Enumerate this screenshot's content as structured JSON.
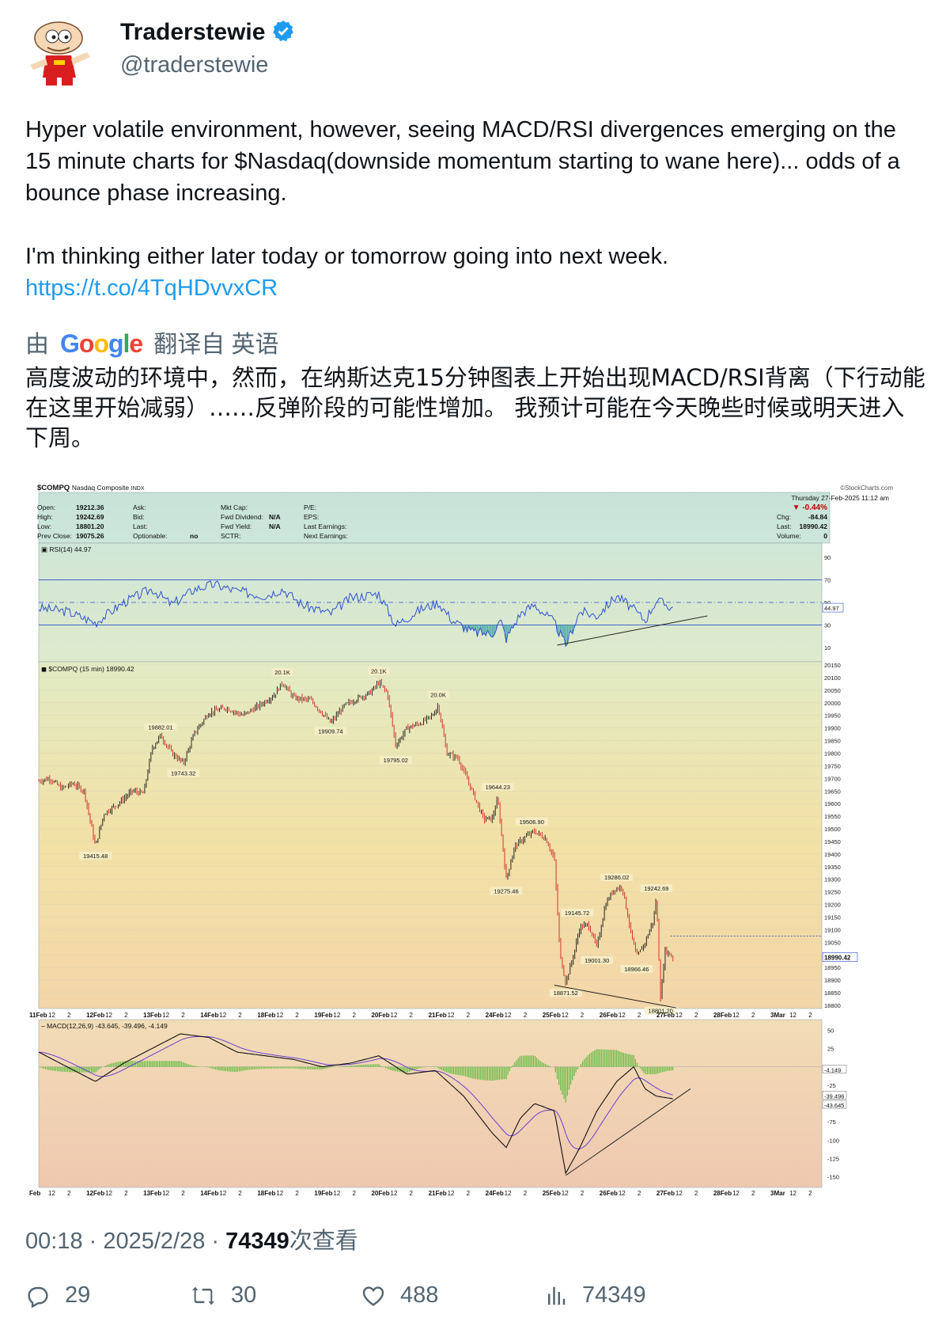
{
  "author": {
    "display_name": "Traderstewie",
    "handle": "@traderstewie",
    "verified": true,
    "avatar_icon": "cartoon-avatar-icon"
  },
  "tweet": {
    "paragraph1": "Hyper volatile environment, however, seeing MACD/RSI divergences emerging on the 15 minute charts for $Nasdaq(downside momentum starting to wane here)... odds of a bounce phase increasing.",
    "paragraph2": "I'm thinking either later today or tomorrow going into next week.",
    "link": "https://t.co/4TqHDvvxCR"
  },
  "translation": {
    "prefix": "由",
    "provider": "Google",
    "suffix": "翻译自 英语",
    "text": "高度波动的环境中，然而，在纳斯达克15分钟图表上开始出现MACD/RSI背离（下行动能在这里开始减弱）……反弹阶段的可能性增加。 我预计可能在今天晚些时候或明天进入下周。"
  },
  "chart": {
    "symbol": "$COMPQ",
    "name": "Nasdaq Composite",
    "exchange": "INDX",
    "source": "©StockCharts.com",
    "date_line": "Thursday  27-Feb-2025  11:12 am",
    "quote": {
      "open_label": "Open:",
      "open": "19212.36",
      "high_label": "High:",
      "high": "19242.69",
      "low_label": "Low:",
      "low": "18801.20",
      "prev_label": "Prev Close:",
      "prev": "19075.26",
      "ask_label": "Ask:",
      "bid_label": "Bid:",
      "last_label": "Last:",
      "optionable_label": "Optionable:",
      "optionable": "no",
      "mktcap_label": "Mkt Cap:",
      "fwd_div_label": "Fwd Dividend:",
      "fwd_div": "N/A",
      "fwd_yield_label": "Fwd Yield:",
      "fwd_yield": "N/A",
      "sctr_label": "SCTR:",
      "pe_label": "P/E:",
      "eps_label": "EPS:",
      "last_earn_label": "Last Earnings:",
      "next_earn_label": "Next Earnings:",
      "pct": "-0.44%",
      "chg_label": "Chg:",
      "chg": "-84.84",
      "last2_label": "Last:",
      "last2": "18990.42",
      "volume_label": "Volume:",
      "volume": "0"
    },
    "rsi_label": "RSI(14) 44.97",
    "rsi_value_tag": "44.97",
    "price_label": "$COMPQ (15 min) 18990.42",
    "price_tag": "18990.42",
    "macd_label": "MACD(12,26,9) -43.645, -39.496, -4.149",
    "macd_tags": [
      "-4.149",
      "-39.496",
      "-43.645"
    ],
    "date_ticks": [
      "11Feb",
      "12",
      "2",
      "12Feb",
      "12",
      "2",
      "13Feb",
      "12",
      "2",
      "14Feb",
      "12",
      "2",
      "18Feb",
      "12",
      "2",
      "19Feb",
      "12",
      "2",
      "20Feb",
      "12",
      "2",
      "21Feb",
      "12",
      "2",
      "24Feb",
      "12",
      "2",
      "25Feb",
      "12",
      "2",
      "26Feb",
      "12",
      "2",
      "27Feb",
      "12",
      "2",
      "28Feb",
      "12",
      "2",
      "3Mar",
      "12",
      "2"
    ],
    "date_ticks_bottom": [
      "Feb",
      "12",
      "2",
      "12Feb",
      "12",
      "2",
      "13Feb",
      "12",
      "2",
      "14Feb",
      "12",
      "2",
      "18Feb",
      "12",
      "2",
      "19Feb",
      "12",
      "2",
      "20Feb",
      "12",
      "2",
      "21Feb",
      "12",
      "2",
      "24Feb",
      "12",
      "2",
      "25Feb",
      "12",
      "2",
      "26Feb",
      "12",
      "2",
      "27Feb",
      "12",
      "2",
      "28Feb",
      "12",
      "2",
      "3Mar",
      "12",
      "2"
    ],
    "rsi_axis": [
      "90",
      "70",
      "50",
      "30",
      "10"
    ],
    "macd_axis": [
      "50",
      "25",
      "-25",
      "-50",
      "-75",
      "-100",
      "-125",
      "-150"
    ]
  },
  "chart_data": {
    "type": "line",
    "title": "$COMPQ Nasdaq Composite INDX",
    "xlabel": "",
    "ylabel": "",
    "ylim": [
      18800,
      20150
    ],
    "y_ticks": [
      20150,
      20100,
      20050,
      20000,
      19950,
      19900,
      19850,
      19800,
      19750,
      19700,
      19650,
      19600,
      19550,
      19500,
      19450,
      19400,
      19350,
      19300,
      19250,
      19200,
      19150,
      19100,
      19050,
      19000,
      18950,
      18900,
      18850,
      18800
    ],
    "annotations": [
      {
        "t": 2.0,
        "label": "19415.48",
        "value": 19415.48
      },
      {
        "t": 4.3,
        "label": "19882.01",
        "value": 19882.01
      },
      {
        "t": 5.1,
        "label": "19743.32",
        "value": 19743.32
      },
      {
        "t": 8.6,
        "label": "20.1K",
        "value": 20100
      },
      {
        "t": 10.3,
        "label": "19909.74",
        "value": 19909.74
      },
      {
        "t": 12.0,
        "label": "20.1K",
        "value": 20105
      },
      {
        "t": 12.6,
        "label": "19795.02",
        "value": 19795.02
      },
      {
        "t": 14.1,
        "label": "20.0K",
        "value": 20010
      },
      {
        "t": 16.2,
        "label": "19644.23",
        "value": 19644.23
      },
      {
        "t": 16.5,
        "label": "19275.46",
        "value": 19275.46
      },
      {
        "t": 17.4,
        "label": "19506.90",
        "value": 19506.9
      },
      {
        "t": 18.6,
        "label": "18871.52",
        "value": 18871.52
      },
      {
        "t": 19.0,
        "label": "19145.72",
        "value": 19145.72
      },
      {
        "t": 19.7,
        "label": "19001.30",
        "value": 19001.3
      },
      {
        "t": 20.4,
        "label": "19286.02",
        "value": 19286.02
      },
      {
        "t": 21.1,
        "label": "18966.46",
        "value": 18966.46
      },
      {
        "t": 21.8,
        "label": "19242.69",
        "value": 19242.69
      },
      {
        "t": 21.95,
        "label": "18801.20",
        "value": 18801.2
      }
    ],
    "series": [
      {
        "values": [
          [
            0,
            19690
          ],
          [
            0.4,
            19700
          ],
          [
            0.8,
            19660
          ],
          [
            1.2,
            19680
          ],
          [
            1.6,
            19650
          ],
          [
            2.0,
            19430
          ],
          [
            2.3,
            19560
          ],
          [
            2.8,
            19600
          ],
          [
            3.3,
            19650
          ],
          [
            3.7,
            19640
          ],
          [
            4.0,
            19820
          ],
          [
            4.3,
            19870
          ],
          [
            4.7,
            19800
          ],
          [
            5.1,
            19760
          ],
          [
            5.5,
            19880
          ],
          [
            6.0,
            19960
          ],
          [
            6.6,
            19980
          ],
          [
            7.2,
            19950
          ],
          [
            7.8,
            19990
          ],
          [
            8.3,
            20030
          ],
          [
            8.6,
            20080
          ],
          [
            9.0,
            20020
          ],
          [
            9.6,
            20010
          ],
          [
            10.0,
            19960
          ],
          [
            10.3,
            19920
          ],
          [
            10.8,
            19990
          ],
          [
            11.3,
            20020
          ],
          [
            11.7,
            20040
          ],
          [
            12.0,
            20080
          ],
          [
            12.3,
            20040
          ],
          [
            12.6,
            19830
          ],
          [
            13.0,
            19900
          ],
          [
            13.5,
            19920
          ],
          [
            13.9,
            19950
          ],
          [
            14.1,
            19990
          ],
          [
            14.4,
            19800
          ],
          [
            14.8,
            19780
          ],
          [
            15.3,
            19650
          ],
          [
            15.7,
            19540
          ],
          [
            16.0,
            19540
          ],
          [
            16.2,
            19620
          ],
          [
            16.5,
            19300
          ],
          [
            16.8,
            19430
          ],
          [
            17.2,
            19470
          ],
          [
            17.5,
            19490
          ],
          [
            17.9,
            19460
          ],
          [
            18.2,
            19380
          ],
          [
            18.4,
            19000
          ],
          [
            18.6,
            18890
          ],
          [
            18.9,
            19010
          ],
          [
            19.1,
            19110
          ],
          [
            19.4,
            19120
          ],
          [
            19.7,
            19030
          ],
          [
            20.0,
            19200
          ],
          [
            20.3,
            19260
          ],
          [
            20.6,
            19270
          ],
          [
            20.9,
            19090
          ],
          [
            21.1,
            18990
          ],
          [
            21.4,
            19050
          ],
          [
            21.7,
            19140
          ],
          [
            21.8,
            19230
          ],
          [
            21.95,
            18820
          ],
          [
            22.1,
            19020
          ],
          [
            22.4,
            18990
          ]
        ]
      },
      {
        "name": "RSI(14)",
        "values": [
          [
            0,
            45
          ],
          [
            1,
            42
          ],
          [
            2,
            32
          ],
          [
            3,
            50
          ],
          [
            4,
            62
          ],
          [
            4.7,
            48
          ],
          [
            5.5,
            62
          ],
          [
            6.2,
            66
          ],
          [
            7.0,
            60
          ],
          [
            8.0,
            56
          ],
          [
            8.6,
            62
          ],
          [
            9.3,
            48
          ],
          [
            10.3,
            40
          ],
          [
            11.0,
            54
          ],
          [
            12.0,
            58
          ],
          [
            12.6,
            30
          ],
          [
            13.5,
            44
          ],
          [
            14.1,
            50
          ],
          [
            14.6,
            34
          ],
          [
            15.3,
            24
          ],
          [
            16.0,
            22
          ],
          [
            16.3,
            34
          ],
          [
            16.5,
            18
          ],
          [
            17.0,
            40
          ],
          [
            17.5,
            48
          ],
          [
            18.2,
            32
          ],
          [
            18.6,
            12
          ],
          [
            19.1,
            42
          ],
          [
            19.7,
            38
          ],
          [
            20.4,
            56
          ],
          [
            20.9,
            46
          ],
          [
            21.4,
            34
          ],
          [
            21.8,
            52
          ],
          [
            22.4,
            45
          ]
        ]
      },
      {
        "name": "MACD(12,26,9)",
        "values": [
          [
            0,
            20
          ],
          [
            1,
            0
          ],
          [
            2,
            -20
          ],
          [
            3,
            5
          ],
          [
            4,
            25
          ],
          [
            5,
            45
          ],
          [
            6,
            40
          ],
          [
            7,
            20
          ],
          [
            8,
            15
          ],
          [
            9,
            10
          ],
          [
            10,
            0
          ],
          [
            11,
            5
          ],
          [
            12,
            15
          ],
          [
            13,
            -10
          ],
          [
            14,
            -5
          ],
          [
            15,
            -40
          ],
          [
            16,
            -90
          ],
          [
            16.5,
            -110
          ],
          [
            17,
            -70
          ],
          [
            17.5,
            -50
          ],
          [
            18.2,
            -60
          ],
          [
            18.6,
            -145
          ],
          [
            19.1,
            -110
          ],
          [
            19.7,
            -60
          ],
          [
            20.4,
            -20
          ],
          [
            21.0,
            0
          ],
          [
            21.4,
            -30
          ],
          [
            21.8,
            -40
          ],
          [
            22.4,
            -43.6
          ]
        ]
      }
    ]
  }
}
